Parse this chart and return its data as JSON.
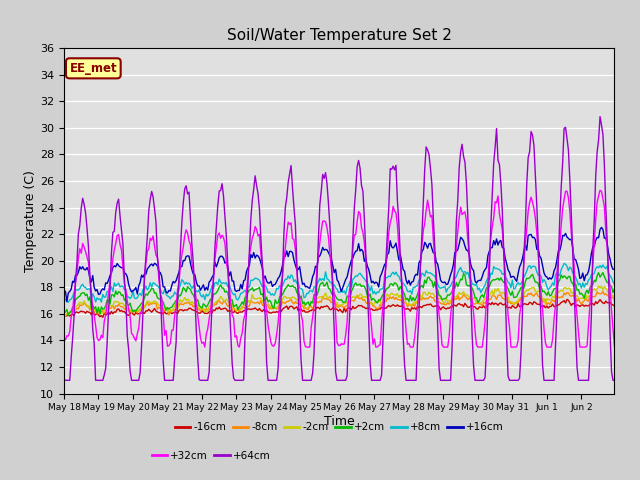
{
  "title": "Soil/Water Temperature Set 2",
  "xlabel": "Time",
  "ylabel": "Temperature (C)",
  "ylim": [
    10,
    36
  ],
  "yticks": [
    10,
    12,
    14,
    16,
    18,
    20,
    22,
    24,
    26,
    28,
    30,
    32,
    34,
    36
  ],
  "fig_bg_color": "#d0d0d0",
  "plot_bg_color": "#e0e0e0",
  "annotation_text": "EE_met",
  "annotation_facecolor": "#ffff99",
  "annotation_edgecolor": "#8b0000",
  "annotation_textcolor": "#8b0000",
  "legend_entries": [
    "-16cm",
    "-8cm",
    "-2cm",
    "+2cm",
    "+8cm",
    "+16cm",
    "+32cm",
    "+64cm"
  ],
  "line_colors": [
    "#cc0000",
    "#ff8800",
    "#cccc00",
    "#00bb00",
    "#00bbcc",
    "#0000bb",
    "#ff00ff",
    "#9900cc"
  ],
  "date_labels": [
    "May 18",
    "May 19",
    "May 20",
    "May 21",
    "May 22",
    "May 23",
    "May 24",
    "May 25",
    "May 26",
    "May 27",
    "May 28",
    "May 29",
    "May 30",
    "May 31",
    "Jun 1",
    "Jun 2"
  ],
  "n_days": 16,
  "pts_per_day": 24
}
